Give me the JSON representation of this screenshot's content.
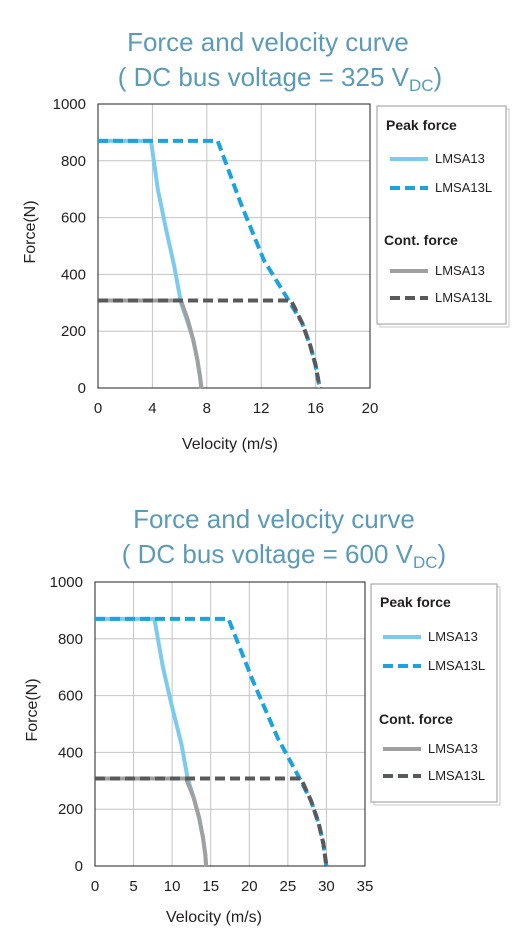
{
  "chart_data": [
    {
      "type": "line",
      "title_line1": "Force and velocity curve",
      "title_line2_prefix": "( DC bus voltage = 325 V",
      "title_line2_subscript": "DC",
      "title_line2_suffix": ")",
      "xlabel": "Velocity (m/s)",
      "ylabel": "Force(N)",
      "xlim": [
        0,
        20
      ],
      "ylim": [
        0,
        1000
      ],
      "x_ticks": [
        0,
        4,
        8,
        12,
        16,
        20
      ],
      "y_ticks": [
        0,
        200,
        400,
        600,
        800,
        1000
      ],
      "grid": true,
      "legend_position": "right",
      "legend_groups": [
        {
          "heading": "Peak force",
          "items": [
            {
              "name": "LMSA13",
              "series": "peak-lmsa13"
            },
            {
              "name": "LMSA13L",
              "series": "peak-lmsa13l"
            }
          ]
        },
        {
          "heading": "Cont. force",
          "items": [
            {
              "name": "LMSA13",
              "series": "cont-lmsa13"
            },
            {
              "name": "LMSA13L",
              "series": "cont-lmsa13l"
            }
          ]
        }
      ],
      "series": [
        {
          "id": "peak-lmsa13",
          "group": "Peak force",
          "name": "LMSA13",
          "color": "#7ccbee",
          "style": "solid",
          "x": [
            0,
            3.9,
            4.4,
            5.0,
            5.6,
            6.1,
            6.6,
            7.0,
            7.3,
            7.5,
            7.6
          ],
          "y": [
            870,
            870,
            700,
            560,
            430,
            300,
            230,
            170,
            100,
            40,
            0
          ]
        },
        {
          "id": "peak-lmsa13l",
          "group": "Peak force",
          "name": "LMSA13L",
          "color": "#1aa3dc",
          "style": "dashed",
          "x": [
            0,
            8.8,
            10.5,
            12.2,
            14.0,
            15.0,
            15.6,
            16.0,
            16.3
          ],
          "y": [
            870,
            870,
            650,
            450,
            310,
            230,
            150,
            80,
            0
          ]
        },
        {
          "id": "cont-lmsa13",
          "group": "Cont. force",
          "name": "LMSA13",
          "color": "#a0a0a0",
          "style": "solid",
          "x": [
            0,
            6.1,
            6.6,
            7.0,
            7.3,
            7.5,
            7.6
          ],
          "y": [
            308,
            308,
            240,
            170,
            100,
            40,
            0
          ]
        },
        {
          "id": "cont-lmsa13l",
          "group": "Cont. force",
          "name": "LMSA13L",
          "color": "#58595b",
          "style": "dashed",
          "x": [
            0,
            14.2,
            15.0,
            15.6,
            16.0,
            16.3
          ],
          "y": [
            308,
            308,
            230,
            150,
            80,
            0
          ]
        }
      ]
    },
    {
      "type": "line",
      "title_line1": "Force and velocity curve",
      "title_line2_prefix": "( DC bus voltage = 600 V",
      "title_line2_subscript": "DC",
      "title_line2_suffix": ")",
      "xlabel": "Velocity (m/s)",
      "ylabel": "Force(N)",
      "xlim": [
        0,
        35
      ],
      "ylim": [
        0,
        1000
      ],
      "x_ticks": [
        0,
        5,
        10,
        15,
        20,
        25,
        30,
        35
      ],
      "y_ticks": [
        0,
        200,
        400,
        600,
        800,
        1000
      ],
      "grid": true,
      "legend_position": "right",
      "legend_groups": [
        {
          "heading": "Peak force",
          "items": [
            {
              "name": "LMSA13",
              "series": "peak-lmsa13"
            },
            {
              "name": "LMSA13L",
              "series": "peak-lmsa13l"
            }
          ]
        },
        {
          "heading": "Cont. force",
          "items": [
            {
              "name": "LMSA13",
              "series": "cont-lmsa13"
            },
            {
              "name": "LMSA13L",
              "series": "cont-lmsa13l"
            }
          ]
        }
      ],
      "series": [
        {
          "id": "peak-lmsa13",
          "group": "Peak force",
          "name": "LMSA13",
          "color": "#7ccbee",
          "style": "solid",
          "x": [
            0,
            7.7,
            8.8,
            10.0,
            11.2,
            12.0,
            12.8,
            13.5,
            14.0,
            14.3,
            14.4
          ],
          "y": [
            870,
            870,
            700,
            560,
            430,
            310,
            240,
            170,
            100,
            40,
            0
          ]
        },
        {
          "id": "peak-lmsa13l",
          "group": "Peak force",
          "name": "LMSA13L",
          "color": "#1aa3dc",
          "style": "dashed",
          "x": [
            0,
            17.3,
            20.5,
            23.7,
            26.5,
            28.0,
            29.0,
            29.6,
            30.0
          ],
          "y": [
            870,
            870,
            650,
            450,
            310,
            230,
            150,
            80,
            0
          ]
        },
        {
          "id": "cont-lmsa13",
          "group": "Cont. force",
          "name": "LMSA13",
          "color": "#a0a0a0",
          "style": "solid",
          "x": [
            0,
            11.8,
            12.8,
            13.5,
            14.0,
            14.3,
            14.4
          ],
          "y": [
            308,
            308,
            240,
            170,
            100,
            40,
            0
          ]
        },
        {
          "id": "cont-lmsa13l",
          "group": "Cont. force",
          "name": "LMSA13L",
          "color": "#58595b",
          "style": "dashed",
          "x": [
            0,
            26.7,
            28.0,
            29.0,
            29.6,
            30.0
          ],
          "y": [
            308,
            308,
            230,
            150,
            80,
            0
          ]
        }
      ]
    }
  ]
}
